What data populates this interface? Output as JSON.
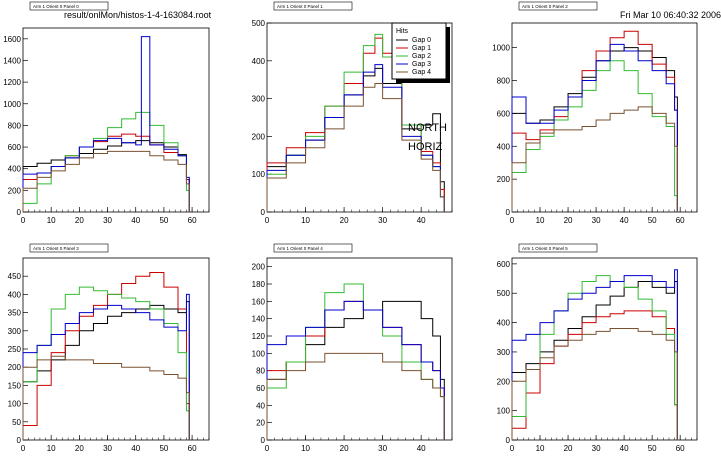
{
  "header": {
    "file_label": "result/onlMon/histos-1-4-163084.root",
    "timestamp": "Fri Mar 10 06:40:32 2006"
  },
  "annotations": {
    "north": "NORTH",
    "horiz": "HORIZ"
  },
  "legend": {
    "title": "Hits",
    "entries": [
      "Gap 0",
      "Gap 1",
      "Gap 2",
      "Gap 3",
      "Gap 4"
    ]
  },
  "colors": {
    "gap0": "#000000",
    "gap1": "#cc0000",
    "gap2": "#33bb33",
    "gap3": "#0000cc",
    "gap4": "#7a5230",
    "frame": "#000000",
    "title_box": "#ffffff"
  },
  "chart_data": [
    {
      "type": "line",
      "title": "Arm 1 Orient 0 Panel 0",
      "xlim": [
        0,
        66
      ],
      "ylim": [
        0,
        1700
      ],
      "xticks": [
        0,
        10,
        20,
        30,
        40,
        50,
        60
      ],
      "yticks": [
        0,
        200,
        400,
        600,
        800,
        1000,
        1200,
        1400,
        1600
      ],
      "series": [
        {
          "name": "Gap 0",
          "x": [
            0,
            5,
            10,
            15,
            20,
            25,
            30,
            35,
            40,
            45,
            50,
            55,
            58
          ],
          "y": [
            420,
            450,
            480,
            500,
            540,
            580,
            610,
            640,
            660,
            640,
            600,
            530,
            300
          ]
        },
        {
          "name": "Gap 1",
          "x": [
            0,
            5,
            10,
            15,
            20,
            25,
            30,
            35,
            40,
            45,
            50,
            55,
            58
          ],
          "y": [
            300,
            360,
            420,
            520,
            600,
            650,
            700,
            720,
            700,
            620,
            550,
            520,
            300
          ]
        },
        {
          "name": "Gap 2",
          "x": [
            0,
            5,
            10,
            15,
            20,
            25,
            30,
            35,
            40,
            45,
            50,
            55,
            58
          ],
          "y": [
            80,
            260,
            420,
            520,
            600,
            680,
            780,
            860,
            920,
            800,
            640,
            520,
            200
          ]
        },
        {
          "name": "Gap 3",
          "x": [
            0,
            5,
            10,
            15,
            20,
            25,
            30,
            35,
            40,
            42,
            45,
            50,
            55,
            58
          ],
          "y": [
            350,
            360,
            420,
            500,
            600,
            660,
            680,
            640,
            620,
            1620,
            620,
            580,
            520,
            320
          ]
        },
        {
          "name": "Gap 4",
          "x": [
            0,
            5,
            10,
            15,
            20,
            25,
            30,
            35,
            40,
            45,
            50,
            55,
            58
          ],
          "y": [
            220,
            320,
            380,
            440,
            500,
            540,
            560,
            560,
            560,
            520,
            480,
            440,
            260
          ]
        }
      ]
    },
    {
      "type": "line",
      "title": "Arm 1 Orient 0 Panel 1",
      "xlim": [
        0,
        48
      ],
      "ylim": [
        0,
        500
      ],
      "xticks": [
        0,
        10,
        20,
        30,
        40
      ],
      "yticks": [
        0,
        100,
        200,
        300,
        400,
        500
      ],
      "series": [
        {
          "name": "Gap 0",
          "x": [
            0,
            5,
            10,
            15,
            20,
            25,
            28,
            30,
            35,
            40,
            43,
            45
          ],
          "y": [
            120,
            150,
            190,
            250,
            310,
            360,
            380,
            340,
            220,
            230,
            260,
            80
          ]
        },
        {
          "name": "Gap 1",
          "x": [
            0,
            5,
            10,
            15,
            20,
            25,
            28,
            30,
            35,
            40,
            43,
            45
          ],
          "y": [
            130,
            170,
            210,
            280,
            340,
            420,
            460,
            420,
            230,
            160,
            130,
            60
          ]
        },
        {
          "name": "Gap 2",
          "x": [
            0,
            5,
            10,
            15,
            20,
            25,
            28,
            30,
            35,
            40,
            43,
            45
          ],
          "y": [
            100,
            150,
            200,
            280,
            370,
            440,
            470,
            410,
            230,
            150,
            120,
            40
          ]
        },
        {
          "name": "Gap 3",
          "x": [
            0,
            5,
            10,
            15,
            20,
            25,
            28,
            30,
            35,
            40,
            43,
            45
          ],
          "y": [
            110,
            150,
            190,
            250,
            310,
            370,
            390,
            330,
            200,
            150,
            120,
            40
          ]
        },
        {
          "name": "Gap 4",
          "x": [
            0,
            5,
            10,
            15,
            20,
            25,
            28,
            30,
            35,
            40,
            43,
            45
          ],
          "y": [
            90,
            130,
            170,
            220,
            280,
            330,
            340,
            300,
            190,
            140,
            110,
            40
          ]
        }
      ]
    },
    {
      "type": "line",
      "title": "Arm 1 Orient 0 Panel 2",
      "xlim": [
        0,
        66
      ],
      "ylim": [
        0,
        1150
      ],
      "xticks": [
        0,
        10,
        20,
        30,
        40,
        50,
        60
      ],
      "yticks": [
        0,
        200,
        400,
        600,
        800,
        1000
      ],
      "series": [
        {
          "name": "Gap 0",
          "x": [
            0,
            5,
            10,
            15,
            20,
            25,
            30,
            35,
            40,
            45,
            50,
            55,
            58
          ],
          "y": [
            600,
            540,
            560,
            640,
            720,
            820,
            920,
            980,
            1000,
            980,
            940,
            860,
            700
          ]
        },
        {
          "name": "Gap 1",
          "x": [
            0,
            5,
            10,
            15,
            20,
            25,
            30,
            35,
            40,
            45,
            50,
            55,
            58
          ],
          "y": [
            480,
            440,
            500,
            580,
            700,
            860,
            980,
            1060,
            1100,
            1020,
            900,
            820,
            620
          ]
        },
        {
          "name": "Gap 2",
          "x": [
            0,
            5,
            10,
            15,
            20,
            25,
            30,
            35,
            40,
            45,
            50,
            55,
            58
          ],
          "y": [
            240,
            380,
            460,
            560,
            640,
            740,
            860,
            920,
            860,
            720,
            580,
            520,
            100
          ]
        },
        {
          "name": "Gap 3",
          "x": [
            0,
            5,
            10,
            15,
            20,
            25,
            30,
            35,
            40,
            45,
            50,
            55,
            58
          ],
          "y": [
            700,
            540,
            540,
            620,
            700,
            800,
            920,
            1020,
            980,
            920,
            860,
            780,
            620
          ]
        },
        {
          "name": "Gap 4",
          "x": [
            0,
            5,
            10,
            15,
            20,
            25,
            30,
            35,
            40,
            45,
            50,
            55,
            58
          ],
          "y": [
            300,
            420,
            480,
            500,
            500,
            520,
            560,
            600,
            620,
            640,
            600,
            540,
            400
          ]
        }
      ]
    },
    {
      "type": "line",
      "title": "Arm 1 Orient 0 Panel 3",
      "xlim": [
        0,
        66
      ],
      "ylim": [
        0,
        500
      ],
      "xticks": [
        0,
        10,
        20,
        30,
        40,
        50,
        60
      ],
      "yticks": [
        0,
        50,
        100,
        150,
        200,
        250,
        300,
        350,
        400,
        450
      ],
      "series": [
        {
          "name": "Gap 0",
          "x": [
            0,
            5,
            10,
            15,
            20,
            25,
            30,
            35,
            40,
            45,
            50,
            55,
            58
          ],
          "y": [
            160,
            190,
            220,
            260,
            300,
            320,
            340,
            350,
            360,
            370,
            360,
            350,
            380
          ]
        },
        {
          "name": "Gap 1",
          "x": [
            0,
            5,
            10,
            15,
            20,
            25,
            30,
            35,
            40,
            45,
            50,
            55,
            58
          ],
          "y": [
            40,
            150,
            240,
            300,
            340,
            370,
            400,
            430,
            450,
            460,
            420,
            360,
            100
          ]
        },
        {
          "name": "Gap 2",
          "x": [
            0,
            5,
            10,
            15,
            20,
            25,
            30,
            35,
            40,
            45,
            50,
            55,
            58
          ],
          "y": [
            160,
            260,
            360,
            400,
            420,
            410,
            400,
            390,
            380,
            360,
            320,
            240,
            80
          ]
        },
        {
          "name": "Gap 3",
          "x": [
            0,
            5,
            10,
            15,
            20,
            25,
            30,
            35,
            40,
            45,
            50,
            55,
            58
          ],
          "y": [
            240,
            260,
            290,
            320,
            350,
            360,
            370,
            360,
            350,
            330,
            310,
            300,
            400
          ]
        },
        {
          "name": "Gap 4",
          "x": [
            0,
            5,
            10,
            15,
            20,
            25,
            30,
            35,
            40,
            45,
            50,
            55,
            58
          ],
          "y": [
            200,
            220,
            230,
            220,
            220,
            210,
            210,
            200,
            200,
            190,
            180,
            170,
            130
          ]
        }
      ]
    },
    {
      "type": "line",
      "title": "Arm 1 Orient 0 Panel 4",
      "xlim": [
        0,
        48
      ],
      "ylim": [
        0,
        210
      ],
      "xticks": [
        0,
        10,
        20,
        30,
        40
      ],
      "yticks": [
        0,
        20,
        40,
        60,
        80,
        100,
        120,
        140,
        160,
        180,
        200
      ],
      "series": [
        {
          "name": "Gap 0",
          "x": [
            0,
            5,
            10,
            15,
            20,
            25,
            30,
            35,
            40,
            43,
            45
          ],
          "y": [
            70,
            90,
            110,
            130,
            140,
            150,
            160,
            160,
            140,
            120,
            70
          ]
        },
        {
          "name": "Gap 1",
          "x": [
            0,
            5,
            10,
            15,
            20,
            25,
            30,
            35,
            40,
            43,
            45
          ],
          "y": [
            80,
            90,
            120,
            150,
            160,
            150,
            130,
            110,
            90,
            80,
            60
          ]
        },
        {
          "name": "Gap 2",
          "x": [
            0,
            5,
            10,
            15,
            20,
            25,
            30,
            35,
            40,
            43,
            45
          ],
          "y": [
            60,
            90,
            130,
            170,
            180,
            150,
            120,
            90,
            70,
            60,
            50
          ]
        },
        {
          "name": "Gap 3",
          "x": [
            0,
            5,
            10,
            15,
            20,
            25,
            30,
            35,
            40,
            43,
            45
          ],
          "y": [
            110,
            120,
            130,
            150,
            160,
            150,
            130,
            110,
            90,
            80,
            60
          ]
        },
        {
          "name": "Gap 4",
          "x": [
            0,
            5,
            10,
            15,
            20,
            25,
            30,
            35,
            40,
            43,
            45
          ],
          "y": [
            70,
            80,
            90,
            100,
            100,
            100,
            90,
            80,
            70,
            60,
            50
          ]
        }
      ]
    },
    {
      "type": "line",
      "title": "Arm 1 Orient 0 Panel 5",
      "xlim": [
        0,
        66
      ],
      "ylim": [
        0,
        620
      ],
      "xticks": [
        0,
        10,
        20,
        30,
        40,
        50,
        60
      ],
      "yticks": [
        0,
        100,
        200,
        300,
        400,
        500,
        600
      ],
      "series": [
        {
          "name": "Gap 0",
          "x": [
            0,
            5,
            10,
            15,
            20,
            25,
            30,
            35,
            40,
            45,
            50,
            55,
            58
          ],
          "y": [
            230,
            260,
            300,
            340,
            380,
            420,
            460,
            490,
            520,
            540,
            520,
            500,
            540
          ]
        },
        {
          "name": "Gap 1",
          "x": [
            0,
            5,
            10,
            15,
            20,
            25,
            30,
            35,
            40,
            45,
            50,
            55,
            58
          ],
          "y": [
            40,
            160,
            260,
            320,
            360,
            400,
            420,
            430,
            440,
            440,
            420,
            380,
            120
          ]
        },
        {
          "name": "Gap 2",
          "x": [
            0,
            5,
            10,
            15,
            20,
            25,
            30,
            35,
            40,
            45,
            50,
            55,
            58
          ],
          "y": [
            80,
            240,
            360,
            440,
            500,
            540,
            560,
            540,
            520,
            480,
            440,
            360,
            120
          ]
        },
        {
          "name": "Gap 3",
          "x": [
            0,
            5,
            10,
            15,
            20,
            25,
            30,
            35,
            40,
            45,
            50,
            55,
            58
          ],
          "y": [
            340,
            360,
            400,
            440,
            480,
            500,
            520,
            540,
            560,
            560,
            540,
            520,
            580
          ]
        },
        {
          "name": "Gap 4",
          "x": [
            0,
            5,
            10,
            15,
            20,
            25,
            30,
            35,
            40,
            45,
            50,
            55,
            58
          ],
          "y": [
            200,
            240,
            280,
            320,
            340,
            360,
            370,
            380,
            380,
            370,
            360,
            340,
            300
          ]
        }
      ]
    }
  ]
}
